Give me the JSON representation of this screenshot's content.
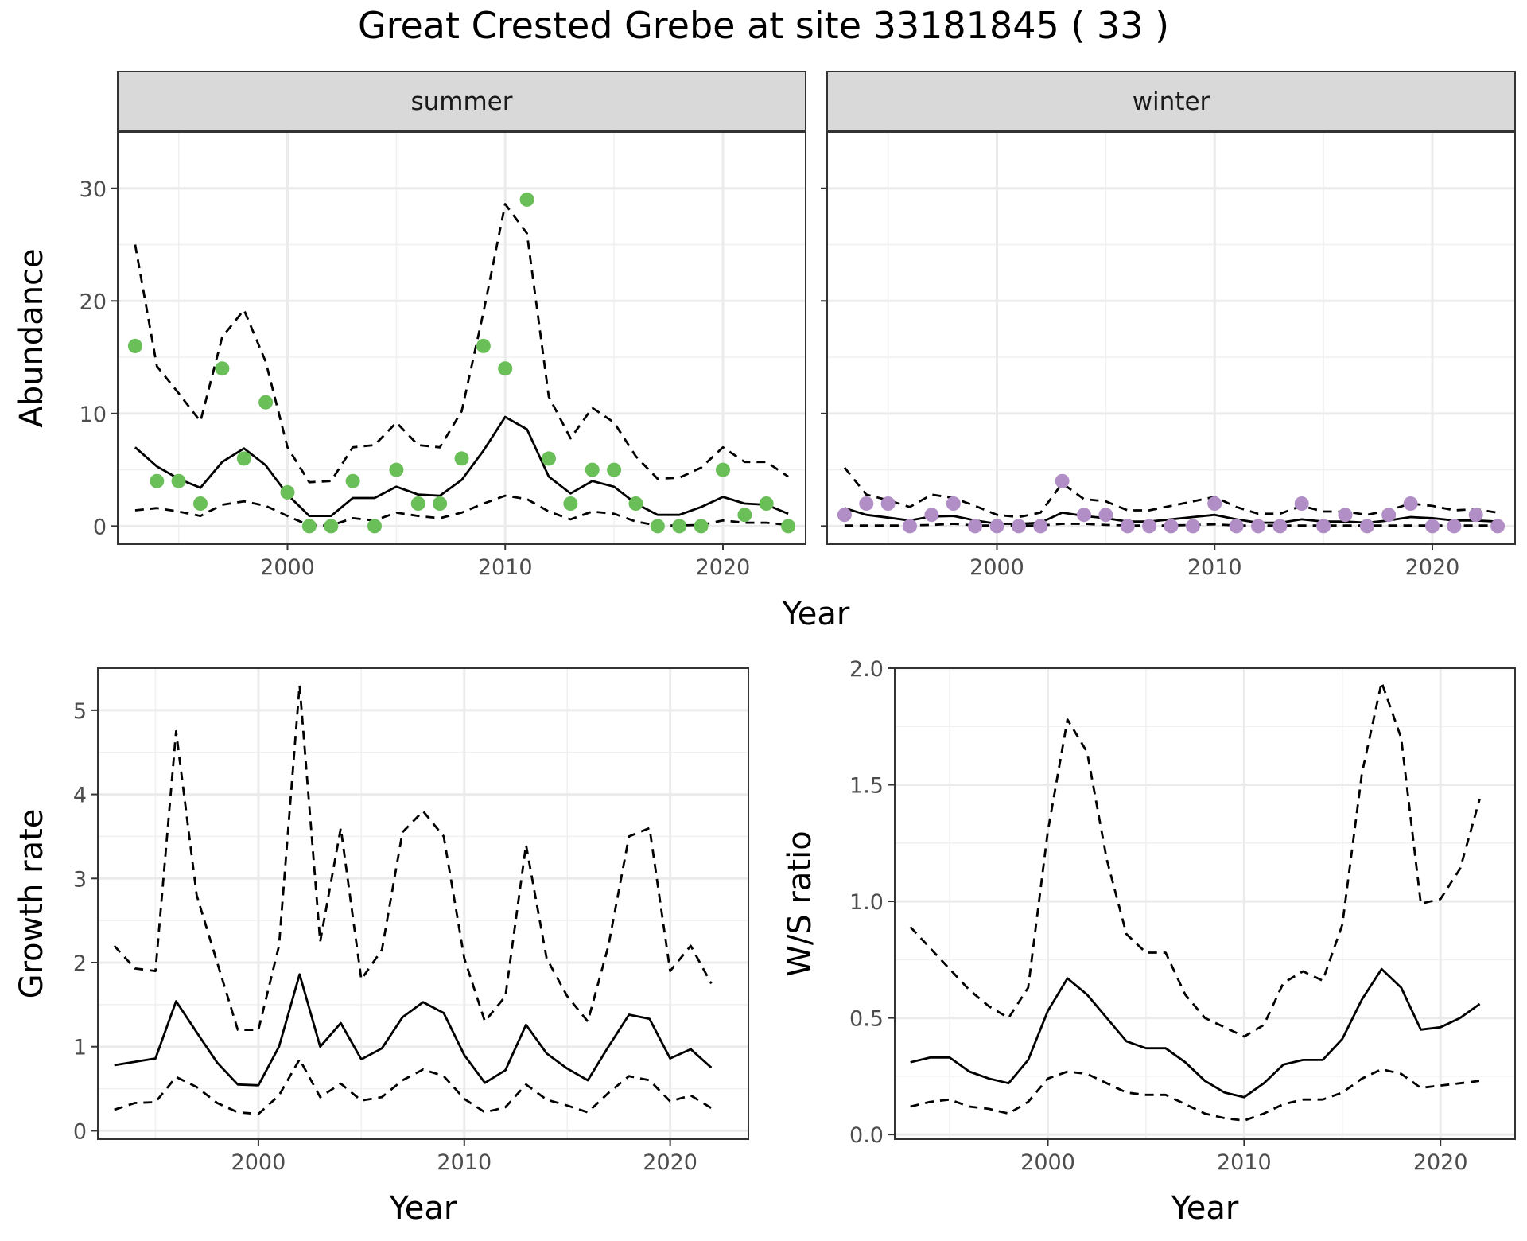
{
  "title": "Great Crested Grebe at site 33181845 ( 33 )",
  "colors": {
    "summer_points": "#6abf59",
    "winter_points": "#b28ec7",
    "lines": "#000000"
  },
  "chart_data": [
    {
      "type": "scatter",
      "panel": "summer",
      "xlabel": "Year",
      "ylabel": "Abundance",
      "x_ticks": [
        2000,
        2010,
        2020
      ],
      "y_ticks": [
        0,
        10,
        20,
        30
      ],
      "xlim": [
        1992.2,
        2023.8
      ],
      "ylim": [
        -1.6,
        35
      ],
      "grid": true,
      "points": {
        "x": [
          1993,
          1994,
          1995,
          1996,
          1997,
          1998,
          1999,
          2000,
          2001,
          2002,
          2003,
          2004,
          2005,
          2006,
          2007,
          2008,
          2009,
          2010,
          2011,
          2012,
          2013,
          2014,
          2015,
          2016,
          2017,
          2018,
          2019,
          2020,
          2021,
          2022,
          2023
        ],
        "y": [
          16,
          4,
          4,
          2,
          14,
          6,
          11,
          3,
          0,
          0,
          4,
          0,
          5,
          2,
          2,
          6,
          16,
          14,
          29,
          6,
          2,
          5,
          5,
          2,
          0,
          0,
          0,
          5,
          1,
          2,
          0
        ]
      },
      "fit": {
        "x": [
          1993,
          1994,
          1995,
          1996,
          1997,
          1998,
          1999,
          2000,
          2001,
          2002,
          2003,
          2004,
          2005,
          2006,
          2007,
          2008,
          2009,
          2010,
          2011,
          2012,
          2013,
          2014,
          2015,
          2016,
          2017,
          2018,
          2019,
          2020,
          2021,
          2022,
          2023
        ],
        "y": [
          7,
          5.3,
          4.2,
          3.4,
          5.7,
          6.9,
          5.4,
          2.8,
          0.9,
          0.9,
          2.5,
          2.5,
          3.5,
          2.8,
          2.7,
          4.1,
          6.7,
          9.7,
          8.6,
          4.4,
          2.9,
          4.0,
          3.5,
          2.0,
          1.0,
          1.0,
          1.7,
          2.6,
          2.0,
          1.9,
          1.1
        ]
      },
      "upper": {
        "x": [
          1993,
          1994,
          1995,
          1996,
          1997,
          1998,
          1999,
          2000,
          2001,
          2002,
          2003,
          2004,
          2005,
          2006,
          2007,
          2008,
          2009,
          2010,
          2011,
          2012,
          2013,
          2014,
          2015,
          2016,
          2017,
          2018,
          2019,
          2020,
          2021,
          2022,
          2023
        ],
        "y": [
          25,
          14.2,
          11.8,
          9.3,
          16.8,
          19.2,
          14.6,
          7.0,
          3.9,
          4.0,
          7.0,
          7.2,
          9.2,
          7.2,
          7.0,
          10.2,
          19.0,
          28.6,
          26.0,
          11.5,
          7.8,
          10.5,
          9.2,
          6.2,
          4.2,
          4.3,
          5.2,
          7.0,
          5.7,
          5.7,
          4.4
        ]
      },
      "lower": {
        "x": [
          1993,
          1994,
          1995,
          1996,
          1997,
          1998,
          1999,
          2000,
          2001,
          2002,
          2003,
          2004,
          2005,
          2006,
          2007,
          2008,
          2009,
          2010,
          2011,
          2012,
          2013,
          2014,
          2015,
          2016,
          2017,
          2018,
          2019,
          2020,
          2021,
          2022,
          2023
        ],
        "y": [
          1.4,
          1.6,
          1.3,
          0.9,
          1.9,
          2.2,
          1.8,
          0.9,
          0.05,
          0.05,
          0.7,
          0.5,
          1.2,
          0.9,
          0.7,
          1.2,
          2.0,
          2.7,
          2.4,
          1.3,
          0.6,
          1.3,
          1.1,
          0.4,
          0.05,
          0.05,
          0.1,
          0.5,
          0.3,
          0.3,
          0.1
        ]
      }
    },
    {
      "type": "scatter",
      "panel": "winter",
      "xlabel": "Year",
      "ylabel": "Abundance",
      "x_ticks": [
        2000,
        2010,
        2020
      ],
      "y_ticks": [
        0,
        10,
        20,
        30
      ],
      "xlim": [
        1992.2,
        2023.8
      ],
      "ylim": [
        -1.6,
        35
      ],
      "grid": true,
      "points": {
        "x": [
          1993,
          1994,
          1995,
          1996,
          1997,
          1998,
          1999,
          2000,
          2001,
          2002,
          2003,
          2004,
          2005,
          2006,
          2007,
          2008,
          2009,
          2010,
          2011,
          2012,
          2013,
          2014,
          2015,
          2016,
          2017,
          2018,
          2019,
          2020,
          2021,
          2022,
          2023
        ],
        "y": [
          1,
          2,
          2,
          0,
          1,
          2,
          0,
          0,
          0,
          0,
          4,
          1,
          1,
          0,
          0,
          0,
          0,
          2,
          0,
          0,
          0,
          2,
          0,
          1,
          0,
          1,
          2,
          0,
          0,
          1,
          0
        ]
      },
      "fit": {
        "x": [
          1993,
          1994,
          1995,
          1996,
          1997,
          1998,
          1999,
          2000,
          2001,
          2002,
          2003,
          2004,
          2005,
          2006,
          2007,
          2008,
          2009,
          2010,
          2011,
          2012,
          2013,
          2014,
          2015,
          2016,
          2017,
          2018,
          2019,
          2020,
          2021,
          2022,
          2023
        ],
        "y": [
          1.6,
          1.0,
          0.75,
          0.5,
          0.85,
          0.9,
          0.5,
          0.2,
          0.2,
          0.3,
          1.2,
          0.9,
          0.7,
          0.4,
          0.4,
          0.6,
          0.8,
          1.0,
          0.6,
          0.3,
          0.3,
          0.6,
          0.4,
          0.4,
          0.3,
          0.5,
          0.8,
          0.7,
          0.5,
          0.5,
          0.4
        ]
      },
      "upper": {
        "x": [
          1993,
          1994,
          1995,
          1996,
          1997,
          1998,
          1999,
          2000,
          2001,
          2002,
          2003,
          2004,
          2005,
          2006,
          2007,
          2008,
          2009,
          2010,
          2011,
          2012,
          2013,
          2014,
          2015,
          2016,
          2017,
          2018,
          2019,
          2020,
          2021,
          2022,
          2023
        ],
        "y": [
          5.2,
          2.8,
          2.3,
          1.7,
          2.8,
          2.5,
          1.8,
          1.0,
          0.8,
          1.2,
          3.8,
          2.4,
          2.2,
          1.4,
          1.4,
          1.8,
          2.2,
          2.6,
          1.7,
          1.1,
          1.1,
          1.8,
          1.3,
          1.3,
          1.0,
          1.4,
          2.0,
          1.8,
          1.4,
          1.5,
          1.2
        ]
      },
      "lower": {
        "x": [
          1993,
          1994,
          1995,
          1996,
          1997,
          1998,
          1999,
          2000,
          2001,
          2002,
          2003,
          2004,
          2005,
          2006,
          2007,
          2008,
          2009,
          2010,
          2011,
          2012,
          2013,
          2014,
          2015,
          2016,
          2017,
          2018,
          2019,
          2020,
          2021,
          2022,
          2023
        ],
        "y": [
          0.05,
          0.05,
          0.05,
          0.05,
          0.1,
          0.2,
          0.05,
          0.05,
          0.05,
          0.05,
          0.2,
          0.2,
          0.1,
          0.05,
          0.05,
          0.05,
          0.1,
          0.15,
          0.05,
          0.05,
          0.05,
          0.05,
          0.05,
          0.05,
          0.05,
          0.05,
          0.05,
          0.05,
          0.05,
          0.05,
          0.05
        ]
      }
    },
    {
      "type": "line",
      "panel": "growth",
      "xlabel": "Year",
      "ylabel": "Growth rate",
      "x_ticks": [
        2000,
        2010,
        2020
      ],
      "y_ticks": [
        0,
        1,
        2,
        3,
        4,
        5
      ],
      "xlim": [
        1992.2,
        2023.8
      ],
      "ylim": [
        -0.1,
        5.5
      ],
      "grid": true,
      "fit": {
        "x": [
          1993,
          1994,
          1995,
          1996,
          1997,
          1998,
          1999,
          2000,
          2001,
          2002,
          2003,
          2004,
          2005,
          2006,
          2007,
          2008,
          2009,
          2010,
          2011,
          2012,
          2013,
          2014,
          2015,
          2016,
          2017,
          2018,
          2019,
          2020,
          2021,
          2022
        ],
        "y": [
          0.78,
          0.82,
          0.86,
          1.54,
          1.17,
          0.81,
          0.55,
          0.54,
          1.0,
          1.86,
          1.0,
          1.28,
          0.85,
          0.98,
          1.35,
          1.53,
          1.4,
          0.9,
          0.57,
          0.72,
          1.26,
          0.92,
          0.74,
          0.6,
          1.0,
          1.38,
          1.33,
          0.86,
          0.97,
          0.75
        ]
      },
      "upper": {
        "x": [
          1993,
          1994,
          1995,
          1996,
          1997,
          1998,
          1999,
          2000,
          2001,
          2002,
          2003,
          2004,
          2005,
          2006,
          2007,
          2008,
          2009,
          2010,
          2011,
          2012,
          2013,
          2014,
          2015,
          2016,
          2017,
          2018,
          2019,
          2020,
          2021,
          2022
        ],
        "y": [
          2.2,
          1.93,
          1.9,
          4.75,
          2.8,
          2.0,
          1.2,
          1.2,
          2.2,
          5.3,
          2.25,
          3.6,
          1.8,
          2.15,
          3.55,
          3.8,
          3.5,
          2.05,
          1.3,
          1.6,
          3.4,
          2.05,
          1.6,
          1.3,
          2.2,
          3.5,
          3.6,
          1.9,
          2.2,
          1.75
        ]
      },
      "lower": {
        "x": [
          1993,
          1994,
          1995,
          1996,
          1997,
          1998,
          1999,
          2000,
          2001,
          2002,
          2003,
          2004,
          2005,
          2006,
          2007,
          2008,
          2009,
          2010,
          2011,
          2012,
          2013,
          2014,
          2015,
          2016,
          2017,
          2018,
          2019,
          2020,
          2021,
          2022
        ],
        "y": [
          0.25,
          0.33,
          0.34,
          0.64,
          0.52,
          0.33,
          0.22,
          0.2,
          0.42,
          0.85,
          0.4,
          0.56,
          0.36,
          0.4,
          0.6,
          0.73,
          0.65,
          0.38,
          0.22,
          0.28,
          0.55,
          0.37,
          0.3,
          0.22,
          0.45,
          0.65,
          0.6,
          0.35,
          0.42,
          0.27
        ]
      }
    },
    {
      "type": "line",
      "panel": "ratio",
      "xlabel": "Year",
      "ylabel": "W/S ratio",
      "x_ticks": [
        2000,
        2010,
        2020
      ],
      "y_ticks": [
        "0.0",
        "0.5",
        "1.0",
        "1.5",
        "2.0"
      ],
      "xlim": [
        1992.2,
        2023.8
      ],
      "ylim": [
        -0.02,
        2.0
      ],
      "grid": true,
      "fit": {
        "x": [
          1993,
          1994,
          1995,
          1996,
          1997,
          1998,
          1999,
          2000,
          2001,
          2002,
          2003,
          2004,
          2005,
          2006,
          2007,
          2008,
          2009,
          2010,
          2011,
          2012,
          2013,
          2014,
          2015,
          2016,
          2017,
          2018,
          2019,
          2020,
          2021,
          2022
        ],
        "y": [
          0.31,
          0.33,
          0.33,
          0.27,
          0.24,
          0.22,
          0.32,
          0.53,
          0.67,
          0.6,
          0.5,
          0.4,
          0.37,
          0.37,
          0.31,
          0.23,
          0.18,
          0.16,
          0.22,
          0.3,
          0.32,
          0.32,
          0.41,
          0.58,
          0.71,
          0.63,
          0.45,
          0.46,
          0.5,
          0.56
        ]
      },
      "upper": {
        "x": [
          1993,
          1994,
          1995,
          1996,
          1997,
          1998,
          1999,
          2000,
          2001,
          2002,
          2003,
          2004,
          2005,
          2006,
          2007,
          2008,
          2009,
          2010,
          2011,
          2012,
          2013,
          2014,
          2015,
          2016,
          2017,
          2018,
          2019,
          2020,
          2021,
          2022
        ],
        "y": [
          0.89,
          0.8,
          0.71,
          0.62,
          0.55,
          0.5,
          0.63,
          1.3,
          1.78,
          1.64,
          1.18,
          0.86,
          0.78,
          0.78,
          0.6,
          0.5,
          0.46,
          0.42,
          0.47,
          0.65,
          0.7,
          0.66,
          0.9,
          1.55,
          1.94,
          1.7,
          0.99,
          1.01,
          1.14,
          1.44
        ]
      },
      "lower": {
        "x": [
          1993,
          1994,
          1995,
          1996,
          1997,
          1998,
          1999,
          2000,
          2001,
          2002,
          2003,
          2004,
          2005,
          2006,
          2007,
          2008,
          2009,
          2010,
          2011,
          2012,
          2013,
          2014,
          2015,
          2016,
          2017,
          2018,
          2019,
          2020,
          2021,
          2022
        ],
        "y": [
          0.12,
          0.14,
          0.15,
          0.12,
          0.11,
          0.09,
          0.14,
          0.24,
          0.27,
          0.26,
          0.22,
          0.18,
          0.17,
          0.17,
          0.13,
          0.09,
          0.07,
          0.06,
          0.09,
          0.13,
          0.15,
          0.15,
          0.18,
          0.24,
          0.28,
          0.26,
          0.2,
          0.21,
          0.22,
          0.23
        ]
      }
    }
  ]
}
